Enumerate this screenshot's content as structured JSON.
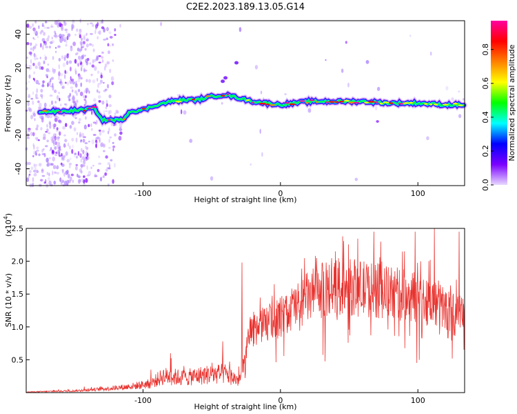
{
  "title": "C2E2.2023.189.13.05.G14",
  "chart_data": [
    {
      "type": "heatmap",
      "xlabel": "Height of straight line (km)",
      "ylabel": "Frequency (Hz)",
      "xlim": [
        -185,
        134
      ],
      "ylim": [
        -50,
        48
      ],
      "xticks": [
        -100,
        0,
        100
      ],
      "xtick_labels": [
        "-100",
        "0",
        "100"
      ],
      "yticks": [
        -40,
        -20,
        0,
        20,
        40
      ],
      "ytick_labels": [
        "-40",
        "-20",
        "0",
        "20",
        "40"
      ],
      "grid": false,
      "ridge": [
        {
          "x": -175,
          "y": -6
        },
        {
          "x": -160,
          "y": -6
        },
        {
          "x": -145,
          "y": -5
        },
        {
          "x": -135,
          "y": -4
        },
        {
          "x": -130,
          "y": -11
        },
        {
          "x": -115,
          "y": -11
        },
        {
          "x": -110,
          "y": -6
        },
        {
          "x": -100,
          "y": -5
        },
        {
          "x": -90,
          "y": -2
        },
        {
          "x": -80,
          "y": 0
        },
        {
          "x": -70,
          "y": 1
        },
        {
          "x": -60,
          "y": 1
        },
        {
          "x": -50,
          "y": 3
        },
        {
          "x": -40,
          "y": 4
        },
        {
          "x": -30,
          "y": 2
        },
        {
          "x": -20,
          "y": 0
        },
        {
          "x": -10,
          "y": -1
        },
        {
          "x": 0,
          "y": -2
        },
        {
          "x": 20,
          "y": 0
        },
        {
          "x": 40,
          "y": 0
        },
        {
          "x": 60,
          "y": 0
        },
        {
          "x": 80,
          "y": -1
        },
        {
          "x": 100,
          "y": -1
        },
        {
          "x": 120,
          "y": -2
        },
        {
          "x": 134,
          "y": -2
        }
      ],
      "branch": [
        {
          "x": -42,
          "y": 12
        },
        {
          "x": -40,
          "y": 14
        },
        {
          "x": -32,
          "y": 23
        }
      ],
      "colorbar": {
        "label": "Normalized spectral amplitude",
        "range": [
          0,
          0.97
        ],
        "ticks": [
          0.0,
          0.2,
          0.4,
          0.6,
          0.8
        ],
        "tick_labels": [
          "0.0",
          "0.2",
          "0.4",
          "0.6",
          "0.8"
        ],
        "colors": [
          "#e8d8ff",
          "#7a00ff",
          "#0000ff",
          "#00ffff",
          "#00ff00",
          "#ffff00",
          "#ff8000",
          "#ff0000",
          "#ff00a0"
        ]
      }
    },
    {
      "type": "line",
      "xlabel": "Height of straight line (km)",
      "ylabel": "SNR (10 * v/v)",
      "y_multiplier_label": "(x10",
      "y_multiplier_exp": "4",
      "xlim": [
        -185,
        134
      ],
      "ylim": [
        0,
        2.5
      ],
      "xticks": [
        -100,
        0,
        100
      ],
      "xtick_labels": [
        "-100",
        "0",
        "100"
      ],
      "yticks": [
        0.5,
        1.0,
        1.5,
        2.0,
        2.5
      ],
      "ytick_labels": [
        "0.5",
        "1.0",
        "1.5",
        "2.0",
        "2.5"
      ],
      "grid": false,
      "color": "#e8322e",
      "envelope": [
        {
          "x": -185,
          "y": 0.01
        },
        {
          "x": -150,
          "y": 0.03
        },
        {
          "x": -130,
          "y": 0.06
        },
        {
          "x": -110,
          "y": 0.1
        },
        {
          "x": -95,
          "y": 0.15
        },
        {
          "x": -85,
          "y": 0.28
        },
        {
          "x": -70,
          "y": 0.25
        },
        {
          "x": -55,
          "y": 0.3
        },
        {
          "x": -40,
          "y": 0.32
        },
        {
          "x": -30,
          "y": 0.2
        },
        {
          "x": -26,
          "y": 0.5
        },
        {
          "x": -22,
          "y": 0.95
        },
        {
          "x": -10,
          "y": 1.05
        },
        {
          "x": 0,
          "y": 1.15
        },
        {
          "x": 10,
          "y": 1.3
        },
        {
          "x": 20,
          "y": 1.45
        },
        {
          "x": 30,
          "y": 1.55
        },
        {
          "x": 40,
          "y": 1.6
        },
        {
          "x": 55,
          "y": 1.6
        },
        {
          "x": 70,
          "y": 1.55
        },
        {
          "x": 85,
          "y": 1.5
        },
        {
          "x": 100,
          "y": 1.45
        },
        {
          "x": 115,
          "y": 1.35
        },
        {
          "x": 125,
          "y": 1.2
        },
        {
          "x": 134,
          "y": 1.15
        }
      ],
      "peaks": [
        {
          "x": -80,
          "y": 0.6
        },
        {
          "x": -42,
          "y": 0.78
        },
        {
          "x": -28,
          "y": 1.98
        },
        {
          "x": -22,
          "y": 1.15
        },
        {
          "x": 40,
          "y": 2.15
        },
        {
          "x": 68,
          "y": 2.45
        },
        {
          "x": 98,
          "y": 2.45
        },
        {
          "x": 112,
          "y": 2.5
        },
        {
          "x": 130,
          "y": 2.45
        }
      ]
    }
  ]
}
